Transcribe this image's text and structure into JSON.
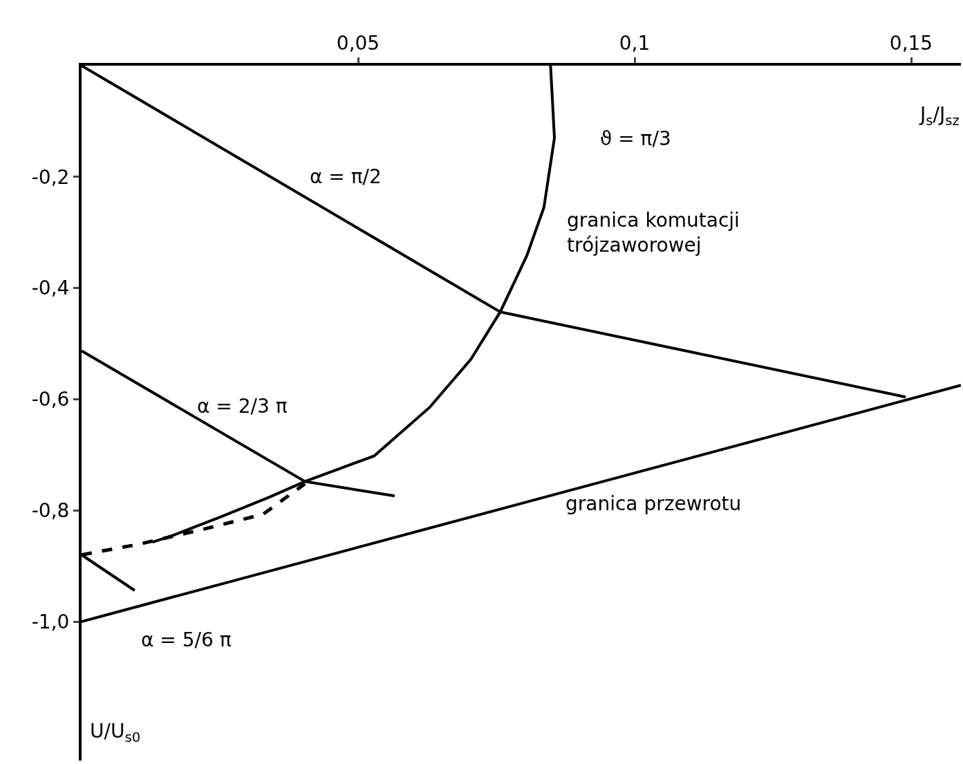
{
  "chart_data": {
    "type": "line",
    "xlabel": "J$_{s}$/J$_{sz}$",
    "ylabel": "U/U$_{s0}$",
    "xlim": [
      0,
      0.159
    ],
    "ylim": [
      -1.25,
      0
    ],
    "xticks": [
      {
        "value": 0.05,
        "label": "0,05"
      },
      {
        "value": 0.1,
        "label": "0,1"
      },
      {
        "value": 0.15,
        "label": "0,15"
      }
    ],
    "yticks": [
      {
        "value": -0.2,
        "label": "-0,2"
      },
      {
        "value": -0.4,
        "label": "-0,4"
      },
      {
        "value": -0.6,
        "label": "-0,6"
      },
      {
        "value": -0.8,
        "label": "-0,8"
      },
      {
        "value": -1.0,
        "label": "-1,0"
      }
    ],
    "grid": false,
    "marker": "none",
    "series": [
      {
        "name": "α = π/2",
        "color": "#000000",
        "x": [
          0,
          0.0757,
          0.149
        ],
        "values": [
          0,
          -0.443,
          -0.596
        ]
      },
      {
        "name": "granica przewrotu",
        "color": "#000000",
        "x": [
          0,
          0.159
        ],
        "values": [
          -1.0,
          -0.575
        ]
      },
      {
        "name": "α = 2/3 π",
        "color": "#000000",
        "x": [
          0,
          0.0404,
          0.0566
        ],
        "values": [
          -0.513,
          -0.748,
          -0.774
        ]
      },
      {
        "color": "#000000",
        "x": [
          0,
          0.0096
        ],
        "values": [
          -0.88,
          -0.944
        ]
      },
      {
        "name": "ϑ = π/3",
        "color": "#000000",
        "x": [
          0.0848,
          0.0855,
          0.0836,
          0.0805,
          0.0757,
          0.0704,
          0.0629,
          0.0529,
          0.0404,
          0.034,
          0.0253,
          0.0165,
          0.0128
        ],
        "values": [
          0,
          -0.13,
          -0.255,
          -0.342,
          -0.443,
          -0.528,
          -0.615,
          -0.702,
          -0.748,
          -0.776,
          -0.811,
          -0.845,
          -0.857
        ]
      },
      {
        "color": "#000000",
        "line_style": "dashed",
        "x": [
          0,
          0.0103,
          0.0228,
          0.0328,
          0.0404
        ],
        "values": [
          -0.88,
          -0.861,
          -0.832,
          -0.807,
          -0.752
        ]
      }
    ],
    "annotations": [
      "granica komutacji\ntrójzaworowej",
      "α = 5/6 π"
    ]
  }
}
